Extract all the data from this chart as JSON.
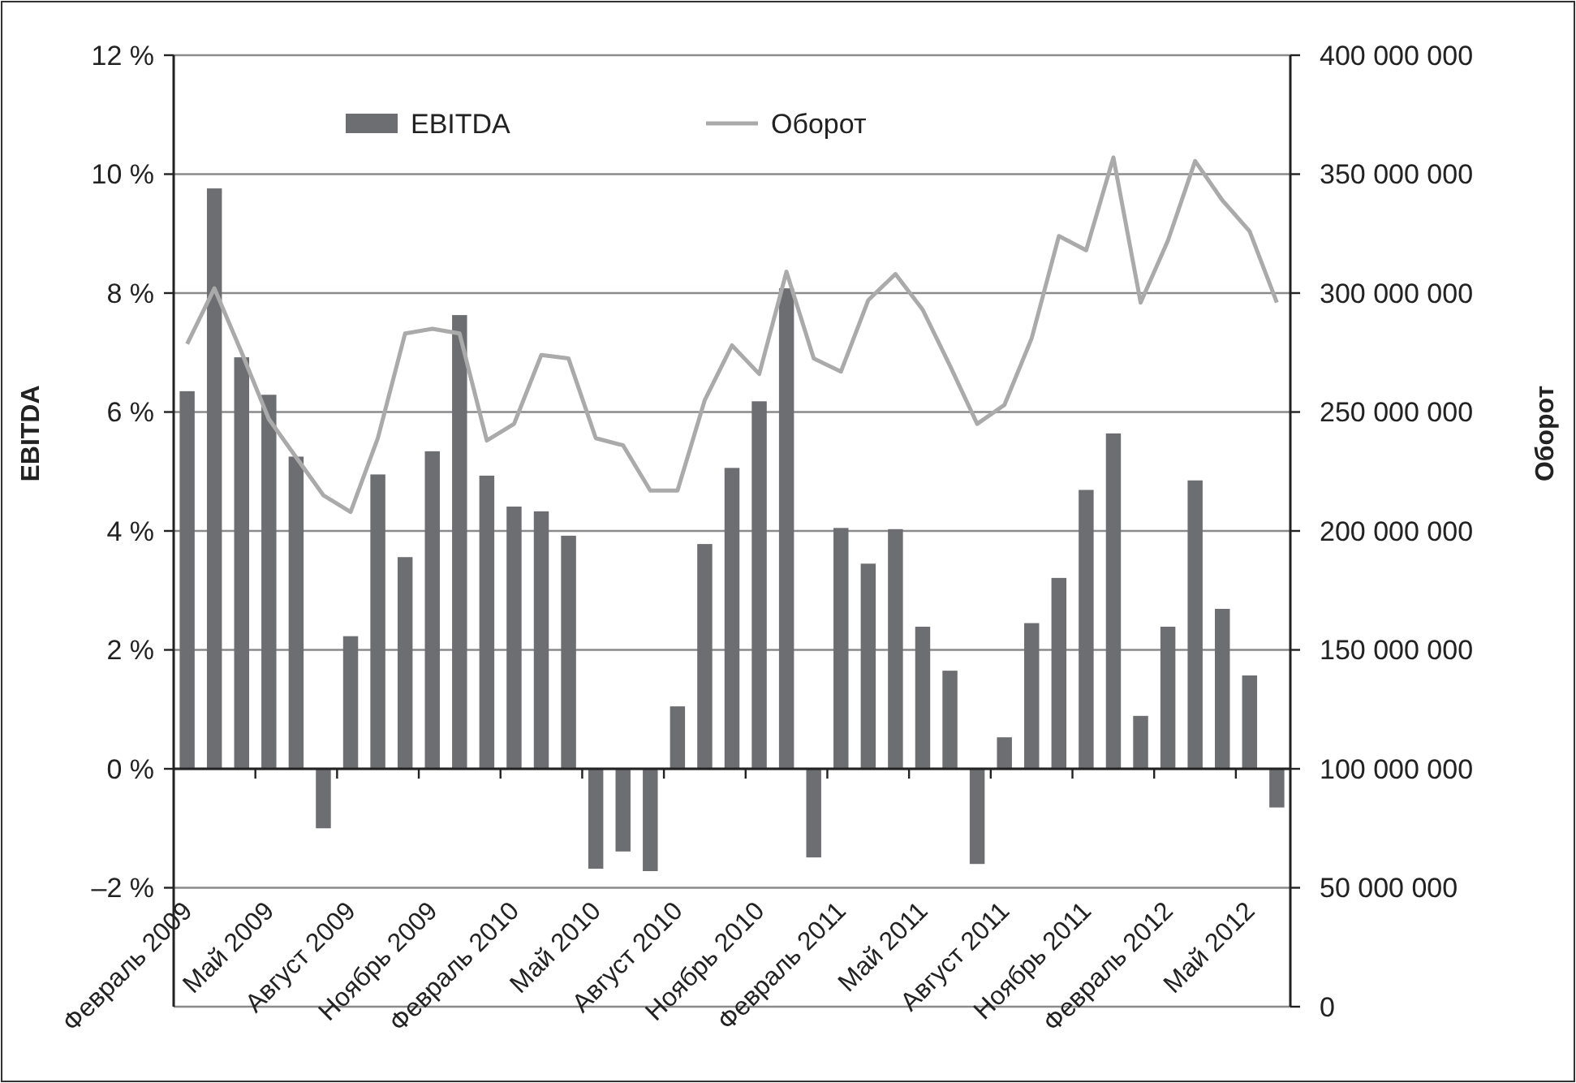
{
  "chart_data": {
    "type": "bar",
    "ylabel": "EBITDA",
    "y2label": "Оборот",
    "categories": [
      "Февраль 2009",
      null,
      null,
      "Май 2009",
      null,
      null,
      "Август 2009",
      null,
      null,
      "Ноябрь 2009",
      null,
      null,
      "Февраль 2010",
      null,
      null,
      "Май 2010",
      null,
      null,
      "Август 2010",
      null,
      null,
      "Ноябрь 2010",
      null,
      null,
      "Февраль 2011",
      null,
      null,
      "Май 2011",
      null,
      null,
      "Август 2011",
      null,
      null,
      "Ноябрь 2011",
      null,
      null,
      "Февраль 2012",
      null,
      null,
      "Май 2012",
      null
    ],
    "series": [
      {
        "name": "EBITDA",
        "color": "#6d6e71",
        "values": [
          6.35,
          9.76,
          6.92,
          6.29,
          5.25,
          -1.0,
          2.23,
          4.95,
          3.56,
          5.34,
          7.63,
          4.93,
          4.41,
          4.33,
          3.92,
          -1.68,
          -1.39,
          -1.72,
          1.05,
          3.78,
          5.06,
          6.18,
          8.08,
          -1.49,
          4.05,
          3.45,
          4.03,
          2.39,
          1.65,
          -1.6,
          0.53,
          2.45,
          3.21,
          4.69,
          5.64,
          0.89,
          2.39,
          4.85,
          2.69,
          1.57,
          -0.65
        ]
      },
      {
        "name": "Оборот",
        "type": "line",
        "axis": "y2",
        "color": "#aaaaaa",
        "values": [
          278600000,
          302000000,
          275000000,
          247000000,
          231000000,
          215000000,
          208000000,
          239000000,
          283000000,
          285000000,
          283000000,
          238000000,
          245000000,
          274000000,
          272500000,
          239000000,
          236000000,
          217000000,
          217000000,
          255000000,
          278000000,
          266000000,
          309000000,
          272500000,
          267000000,
          297000000,
          308000000,
          293000000,
          269500000,
          245000000,
          253000000,
          281000000,
          324000000,
          318000000,
          357000000,
          296000000,
          322000000,
          355500000,
          339000000,
          326000000,
          296000000
        ]
      }
    ],
    "ylim": [
      -4,
      12
    ],
    "yticks": [
      {
        "value": -2,
        "label": "–2 %"
      },
      {
        "value": 0,
        "label": "0 %"
      },
      {
        "value": 2,
        "label": "2 %"
      },
      {
        "value": 4,
        "label": "4 %"
      },
      {
        "value": 6,
        "label": "6 %"
      },
      {
        "value": 8,
        "label": "8 %"
      },
      {
        "value": 10,
        "label": "10 %"
      },
      {
        "value": 12,
        "label": "12 %"
      }
    ],
    "y2lim": [
      0,
      400000000
    ],
    "y2ticks": [
      0,
      {
        "value": 50000000,
        "label": "50 000 000"
      },
      {
        "value": 100000000,
        "label": "100 000 000"
      },
      {
        "value": 150000000,
        "label": "150 000 000"
      },
      {
        "value": 200000000,
        "label": "200 000 000"
      },
      {
        "value": 250000000,
        "label": "250 000 000"
      },
      {
        "value": 300000000,
        "label": "300 000 000"
      },
      {
        "value": 350000000,
        "label": "350 000 000"
      },
      {
        "value": 400000000,
        "label": "400 000 000"
      }
    ],
    "grid": "y",
    "legend": "top"
  }
}
